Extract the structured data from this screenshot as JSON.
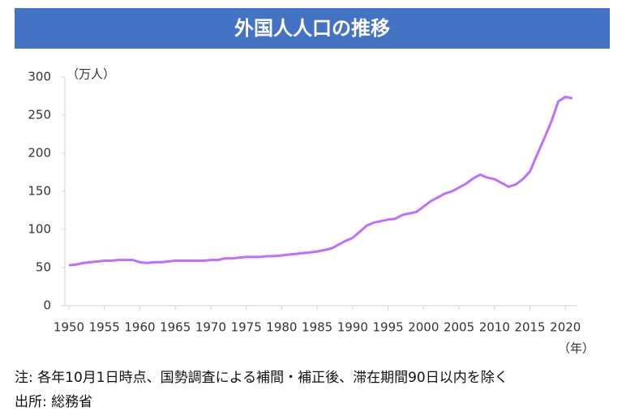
{
  "chart_data": {
    "type": "line",
    "title": "外国人人口の推移",
    "y_unit": "（万人）",
    "x_unit": "（年）",
    "note": "注:  各年10月1日時点、国勢調査による補間・補正後、滞在期間90日以内を除く",
    "source": "出所: 総務省",
    "x": [
      1950,
      1951,
      1952,
      1953,
      1954,
      1955,
      1956,
      1957,
      1958,
      1959,
      1960,
      1961,
      1962,
      1963,
      1964,
      1965,
      1966,
      1967,
      1968,
      1969,
      1970,
      1971,
      1972,
      1973,
      1974,
      1975,
      1976,
      1977,
      1978,
      1979,
      1980,
      1981,
      1982,
      1983,
      1984,
      1985,
      1986,
      1987,
      1988,
      1989,
      1990,
      1991,
      1992,
      1993,
      1994,
      1995,
      1996,
      1997,
      1998,
      1999,
      2000,
      2001,
      2002,
      2003,
      2004,
      2005,
      2006,
      2007,
      2008,
      2009,
      2010,
      2011,
      2012,
      2013,
      2014,
      2015,
      2016,
      2017,
      2018,
      2019,
      2020,
      2021
    ],
    "series": [
      {
        "name": "外国人人口",
        "color": "#bf6fff",
        "values": [
          53,
          54,
          56,
          57,
          58,
          59,
          59,
          60,
          60,
          60,
          57,
          56,
          57,
          57,
          58,
          59,
          59,
          59,
          59,
          59,
          60,
          60,
          62,
          62,
          63,
          64,
          64,
          64,
          65,
          65,
          66,
          67,
          68,
          69,
          70,
          71,
          73,
          75,
          80,
          85,
          89,
          97,
          105,
          109,
          111,
          113,
          114,
          119,
          121,
          123,
          130,
          137,
          142,
          147,
          150,
          155,
          160,
          167,
          172,
          168,
          166,
          161,
          156,
          159,
          166,
          176,
          198,
          219,
          241,
          268,
          274,
          272
        ]
      }
    ],
    "xlim": [
      1950,
      2021
    ],
    "ylim": [
      0,
      300
    ],
    "xticks": [
      1950,
      1955,
      1960,
      1965,
      1970,
      1975,
      1980,
      1985,
      1990,
      1995,
      2000,
      2005,
      2010,
      2015,
      2020
    ],
    "yticks": [
      0,
      50,
      100,
      150,
      200,
      250,
      300
    ]
  }
}
